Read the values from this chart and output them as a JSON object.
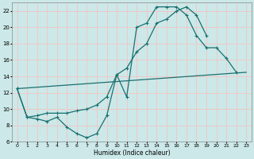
{
  "xlabel": "Humidex (Indice chaleur)",
  "bg_color": "#cce8e8",
  "grid_color": "#f0c8c8",
  "line_color": "#1a7070",
  "xlim": [
    -0.5,
    23.5
  ],
  "ylim": [
    6,
    23
  ],
  "xticks": [
    0,
    1,
    2,
    3,
    4,
    5,
    6,
    7,
    8,
    9,
    10,
    11,
    12,
    13,
    14,
    15,
    16,
    17,
    18,
    19,
    20,
    21,
    22,
    23
  ],
  "yticks": [
    6,
    8,
    10,
    12,
    14,
    16,
    18,
    20,
    22
  ],
  "series1_x": [
    0,
    1,
    2,
    3,
    4,
    5,
    6,
    7,
    8,
    9,
    10,
    11,
    12,
    13,
    14,
    15,
    16,
    17,
    18,
    19,
    20,
    21,
    22
  ],
  "series1_y": [
    12.5,
    9.0,
    8.8,
    8.5,
    9.0,
    7.8,
    7.0,
    6.5,
    7.0,
    9.2,
    14.2,
    11.5,
    20.0,
    20.5,
    22.5,
    22.5,
    22.5,
    21.5,
    19.0,
    17.5,
    17.5,
    16.2,
    14.5
  ],
  "series2_x": [
    0,
    1,
    2,
    3,
    4,
    5,
    6,
    7,
    8,
    9,
    10,
    11,
    12,
    13,
    14,
    15,
    16,
    17,
    18,
    19
  ],
  "series2_y": [
    12.5,
    9.0,
    9.2,
    9.5,
    9.5,
    9.5,
    9.8,
    10.0,
    10.5,
    11.5,
    14.2,
    15.0,
    17.0,
    18.0,
    20.5,
    21.0,
    22.0,
    22.5,
    21.5,
    19.0
  ],
  "series3_x": [
    0,
    23
  ],
  "series3_y": [
    12.5,
    14.5
  ]
}
